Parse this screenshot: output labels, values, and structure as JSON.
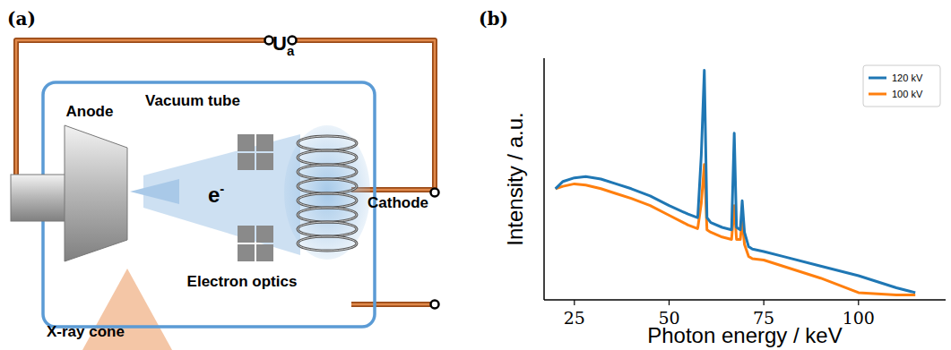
{
  "panel_labels": [
    "(a)",
    "(b)"
  ],
  "diagram": {
    "voltage": {
      "symbol": "U",
      "subscript": "a"
    },
    "electron": {
      "symbol": "e",
      "superscript": "-"
    },
    "labels": {
      "anode": "Anode",
      "tube": "Vacuum tube",
      "cathode": "Cathode",
      "optics": "Electron optics",
      "xray": "X-ray cone"
    }
  },
  "chart_data": {
    "type": "line",
    "x_label": "Photon energy / keV",
    "y_label": "Intensity / a.u.",
    "x": [
      20,
      22,
      25,
      28,
      32,
      36,
      40,
      45,
      50,
      55,
      57.5,
      57.6,
      58.5,
      59.3,
      60.0,
      61,
      64,
      66.5,
      67.2,
      67.8,
      68.8,
      69.3,
      69.9,
      71,
      72,
      75,
      80,
      90,
      100,
      110,
      115
    ],
    "series": [
      {
        "name": "120 kV",
        "color": "#1f77b4",
        "values": [
          0.46,
          0.49,
          0.505,
          0.51,
          0.5,
          0.48,
          0.46,
          0.43,
          0.39,
          0.355,
          0.34,
          0.35,
          0.6,
          0.95,
          0.34,
          0.32,
          0.3,
          0.29,
          0.69,
          0.3,
          0.29,
          0.41,
          0.28,
          0.22,
          0.21,
          0.2,
          0.18,
          0.14,
          0.1,
          0.05,
          0.03
        ]
      },
      {
        "name": "100 kV",
        "color": "#ff7f0e",
        "values": [
          0.46,
          0.47,
          0.48,
          0.475,
          0.46,
          0.44,
          0.42,
          0.39,
          0.35,
          0.31,
          0.295,
          0.3,
          0.4,
          0.56,
          0.29,
          0.28,
          0.26,
          0.25,
          0.39,
          0.25,
          0.25,
          0.33,
          0.23,
          0.18,
          0.17,
          0.165,
          0.14,
          0.09,
          0.03,
          0.02,
          0.02
        ]
      }
    ],
    "xlim": [
      17,
      123
    ],
    "xticks": [
      25,
      50,
      75,
      100
    ],
    "ylim": [
      0,
      1
    ],
    "tick_labels": "x",
    "legend": "upper right",
    "grid": false
  }
}
